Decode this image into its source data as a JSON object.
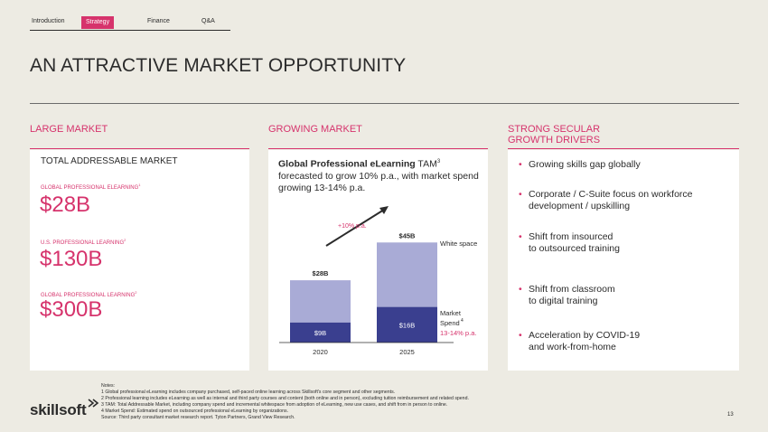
{
  "nav": {
    "tabs": [
      {
        "label": "Introduction",
        "active": false
      },
      {
        "label": "Strategy",
        "active": true
      },
      {
        "label": "Finance",
        "active": false
      },
      {
        "label": "Q&A",
        "active": false
      }
    ]
  },
  "page_title": "AN ATTRACTIVE MARKET OPPORTUNITY",
  "sections": {
    "large": {
      "title": "LARGE MARKET"
    },
    "growing": {
      "title": "GROWING MARKET"
    },
    "secular": {
      "title_line1": "STRONG SECULAR",
      "title_line2": "GROWTH DRIVERS"
    }
  },
  "tam": {
    "heading": "TOTAL ADDRESSABLE MARKET",
    "items": [
      {
        "label": "GLOBAL PROFESSIONAL ELEARNING",
        "sup": "1",
        "value": "$28B"
      },
      {
        "label": "U.S. PROFESSIONAL LEARNING",
        "sup": "2",
        "value": "$130B"
      },
      {
        "label": "GLOBAL PROFESSIONAL LEARNING",
        "sup": "2",
        "value": "$300B"
      }
    ]
  },
  "growing": {
    "headline_bold": "Global Professional eLearning",
    "headline_rest": " TAM",
    "headline_sup": "3",
    "subtext": "forecasted to grow 10% p.a., with market spend growing 13-14% p.a."
  },
  "chart_data": {
    "type": "bar",
    "categories": [
      "2020",
      "2025"
    ],
    "series": [
      {
        "name": "Market Spend",
        "values": [
          9,
          16
        ]
      },
      {
        "name": "White space",
        "values": [
          19,
          29
        ]
      }
    ],
    "totals": [
      28,
      45
    ],
    "total_labels": [
      "$28B",
      "$45B"
    ],
    "segment_labels": [
      "$9B",
      "$16B"
    ],
    "growth_annotation": "+10% p.a.",
    "legend_white_space": "White space",
    "legend_market_spend": "Market",
    "legend_market_spend_line2": "Spend",
    "legend_market_spend_sup": "4",
    "legend_market_growth": "13-14% p.a.",
    "colors": {
      "spend": "#3a3f8f",
      "white_space": "#a9abd6",
      "accent": "#d6336c"
    },
    "ylim": [
      0,
      50
    ]
  },
  "drivers": [
    {
      "line1": "Growing skills gap globally",
      "line2": ""
    },
    {
      "line1": "Corporate / C-Suite focus on workforce",
      "line2": "development / upskilling"
    },
    {
      "line1": "Shift from insourced",
      "line2": "to outsourced training"
    },
    {
      "line1": "Shift from classroom",
      "line2": "to digital training"
    },
    {
      "line1": "Acceleration by COVID-19",
      "line2": "and work-from-home"
    }
  ],
  "notes": [
    "Notes:",
    "1 Global professional eLearning includes company purchased, self-paced online learning across Skillsoft's core segment and other segments.",
    "2 Professional learning includes eLearning as well as internal and third party courses and content (both online and in person), excluding tuition reimbursement and related spend.",
    "3 TAM: Total Addressable Market, including company spend and incremental whitespace from adoption of eLearning, new use cases, and shift from in person to online.",
    "4 Market Spend: Estimated spend on outsourced professional eLearning by organizations.",
    "Source: Third party consultant market research report. Tyton Partners, Grand View Research."
  ],
  "logo": "skillsoft",
  "page_number": "13"
}
